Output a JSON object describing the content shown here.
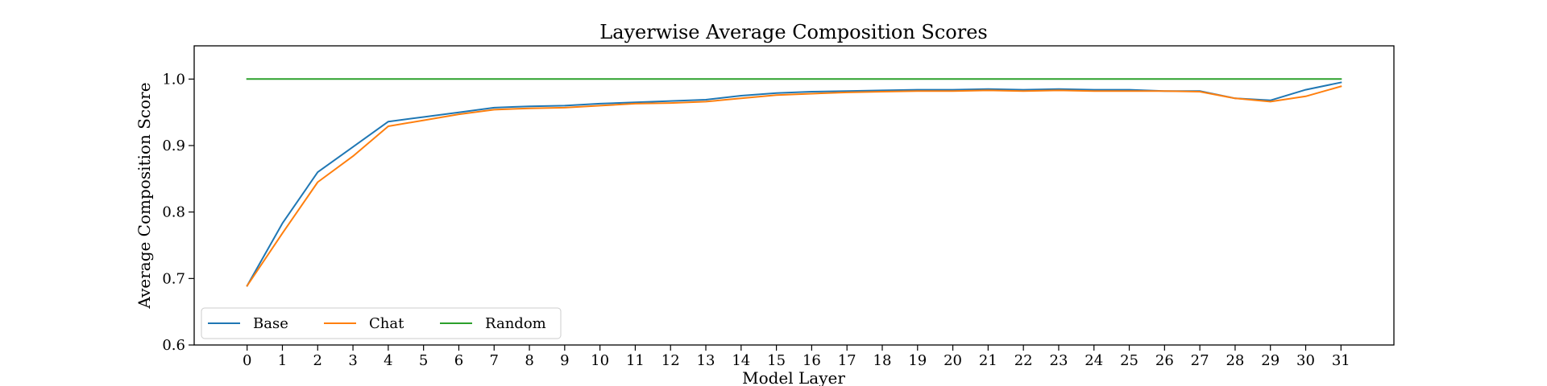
{
  "chart_data": {
    "type": "line",
    "title": "Layerwise Average Composition Scores",
    "xlabel": "Model Layer",
    "ylabel": "Average Composition Score",
    "x": [
      0,
      1,
      2,
      3,
      4,
      5,
      6,
      7,
      8,
      9,
      10,
      11,
      12,
      13,
      14,
      15,
      16,
      17,
      18,
      19,
      20,
      21,
      22,
      23,
      24,
      25,
      26,
      27,
      28,
      29,
      30,
      31
    ],
    "xticks": [
      "0",
      "1",
      "2",
      "3",
      "4",
      "5",
      "6",
      "7",
      "8",
      "9",
      "10",
      "11",
      "12",
      "13",
      "14",
      "15",
      "16",
      "17",
      "18",
      "19",
      "20",
      "21",
      "22",
      "23",
      "24",
      "25",
      "26",
      "27",
      "28",
      "29",
      "30",
      "31"
    ],
    "yticks": [
      "0.6",
      "0.7",
      "0.8",
      "0.9",
      "1.0"
    ],
    "ylim": [
      0.6,
      1.05
    ],
    "xlim": [
      -1.5,
      32.5
    ],
    "grid": false,
    "legend": {
      "placement": "lower-left",
      "ncol": 3
    },
    "series": [
      {
        "name": "Base",
        "color": "#1f77b4",
        "values": [
          0.689,
          0.783,
          0.86,
          0.898,
          0.936,
          0.943,
          0.95,
          0.957,
          0.959,
          0.96,
          0.963,
          0.965,
          0.967,
          0.969,
          0.975,
          0.979,
          0.981,
          0.982,
          0.983,
          0.984,
          0.984,
          0.985,
          0.984,
          0.985,
          0.984,
          0.984,
          0.982,
          0.982,
          0.971,
          0.968,
          0.984,
          0.995
        ]
      },
      {
        "name": "Chat",
        "color": "#ff7f0e",
        "values": [
          0.689,
          0.768,
          0.845,
          0.884,
          0.929,
          0.938,
          0.947,
          0.954,
          0.956,
          0.957,
          0.96,
          0.963,
          0.964,
          0.966,
          0.971,
          0.976,
          0.978,
          0.98,
          0.981,
          0.982,
          0.982,
          0.983,
          0.982,
          0.983,
          0.982,
          0.982,
          0.982,
          0.981,
          0.971,
          0.966,
          0.974,
          0.989
        ]
      },
      {
        "name": "Random",
        "color": "#2ca02c",
        "values": [
          1.0,
          1.0,
          1.0,
          1.0,
          1.0,
          1.0,
          1.0,
          1.0,
          1.0,
          1.0,
          1.0,
          1.0,
          1.0,
          1.0,
          1.0,
          1.0,
          1.0,
          1.0,
          1.0,
          1.0,
          1.0,
          1.0,
          1.0,
          1.0,
          1.0,
          1.0,
          1.0,
          1.0,
          1.0,
          1.0,
          1.0,
          1.0
        ]
      }
    ]
  }
}
